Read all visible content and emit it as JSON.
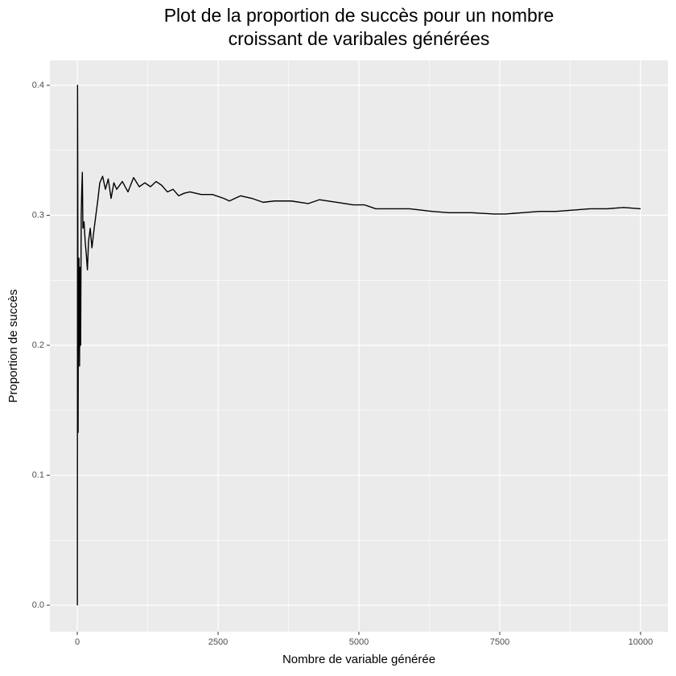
{
  "chart_data": {
    "type": "line",
    "title": [
      "Plot de la proportion de succès pour un nombre",
      "croissant de varibales générées"
    ],
    "x_label": "Nombre de variable générée",
    "y_label": "Proportion de succès",
    "color": "#000000",
    "x": [
      1,
      2,
      5,
      10,
      15,
      20,
      30,
      40,
      50,
      60,
      70,
      80,
      90,
      100,
      120,
      140,
      160,
      180,
      200,
      230,
      260,
      300,
      330,
      360,
      400,
      450,
      500,
      550,
      600,
      650,
      700,
      800,
      900,
      1000,
      1100,
      1200,
      1300,
      1400,
      1500,
      1600,
      1700,
      1800,
      1900,
      2000,
      2200,
      2400,
      2600,
      2700,
      2900,
      3100,
      3300,
      3500,
      3800,
      4100,
      4300,
      4600,
      4900,
      5100,
      5300,
      5600,
      5900,
      6300,
      6600,
      7000,
      7400,
      7600,
      7900,
      8200,
      8500,
      8800,
      9100,
      9400,
      9700,
      10000
    ],
    "values": [
      0,
      0,
      0.4,
      0.3,
      0.133,
      0.25,
      0.267,
      0.184,
      0.26,
      0.2,
      0.3,
      0.32,
      0.333,
      0.29,
      0.295,
      0.28,
      0.27,
      0.258,
      0.28,
      0.29,
      0.275,
      0.29,
      0.3,
      0.31,
      0.325,
      0.33,
      0.32,
      0.328,
      0.313,
      0.325,
      0.32,
      0.326,
      0.318,
      0.329,
      0.322,
      0.325,
      0.322,
      0.326,
      0.323,
      0.318,
      0.32,
      0.315,
      0.317,
      0.318,
      0.316,
      0.316,
      0.313,
      0.311,
      0.315,
      0.313,
      0.31,
      0.311,
      0.311,
      0.309,
      0.312,
      0.31,
      0.308,
      0.308,
      0.305,
      0.305,
      0.305,
      0.303,
      0.302,
      0.302,
      0.301,
      0.301,
      0.302,
      0.303,
      0.303,
      0.304,
      0.305,
      0.305,
      0.306,
      0.305
    ],
    "xlim": [
      -486,
      10486
    ],
    "ylim": [
      -0.0204,
      0.4192
    ],
    "xticks": [
      0,
      2500,
      5000,
      7500,
      10000
    ],
    "yticks": [
      {
        "value": 0,
        "label": "0.0"
      },
      0.1,
      0.2,
      0.3,
      0.4
    ],
    "x_minor_ticks": [
      1250,
      3750,
      6250,
      8750
    ],
    "y_minor_ticks": [
      0.05,
      0.15,
      0.25,
      0.35
    ],
    "grid": true
  }
}
